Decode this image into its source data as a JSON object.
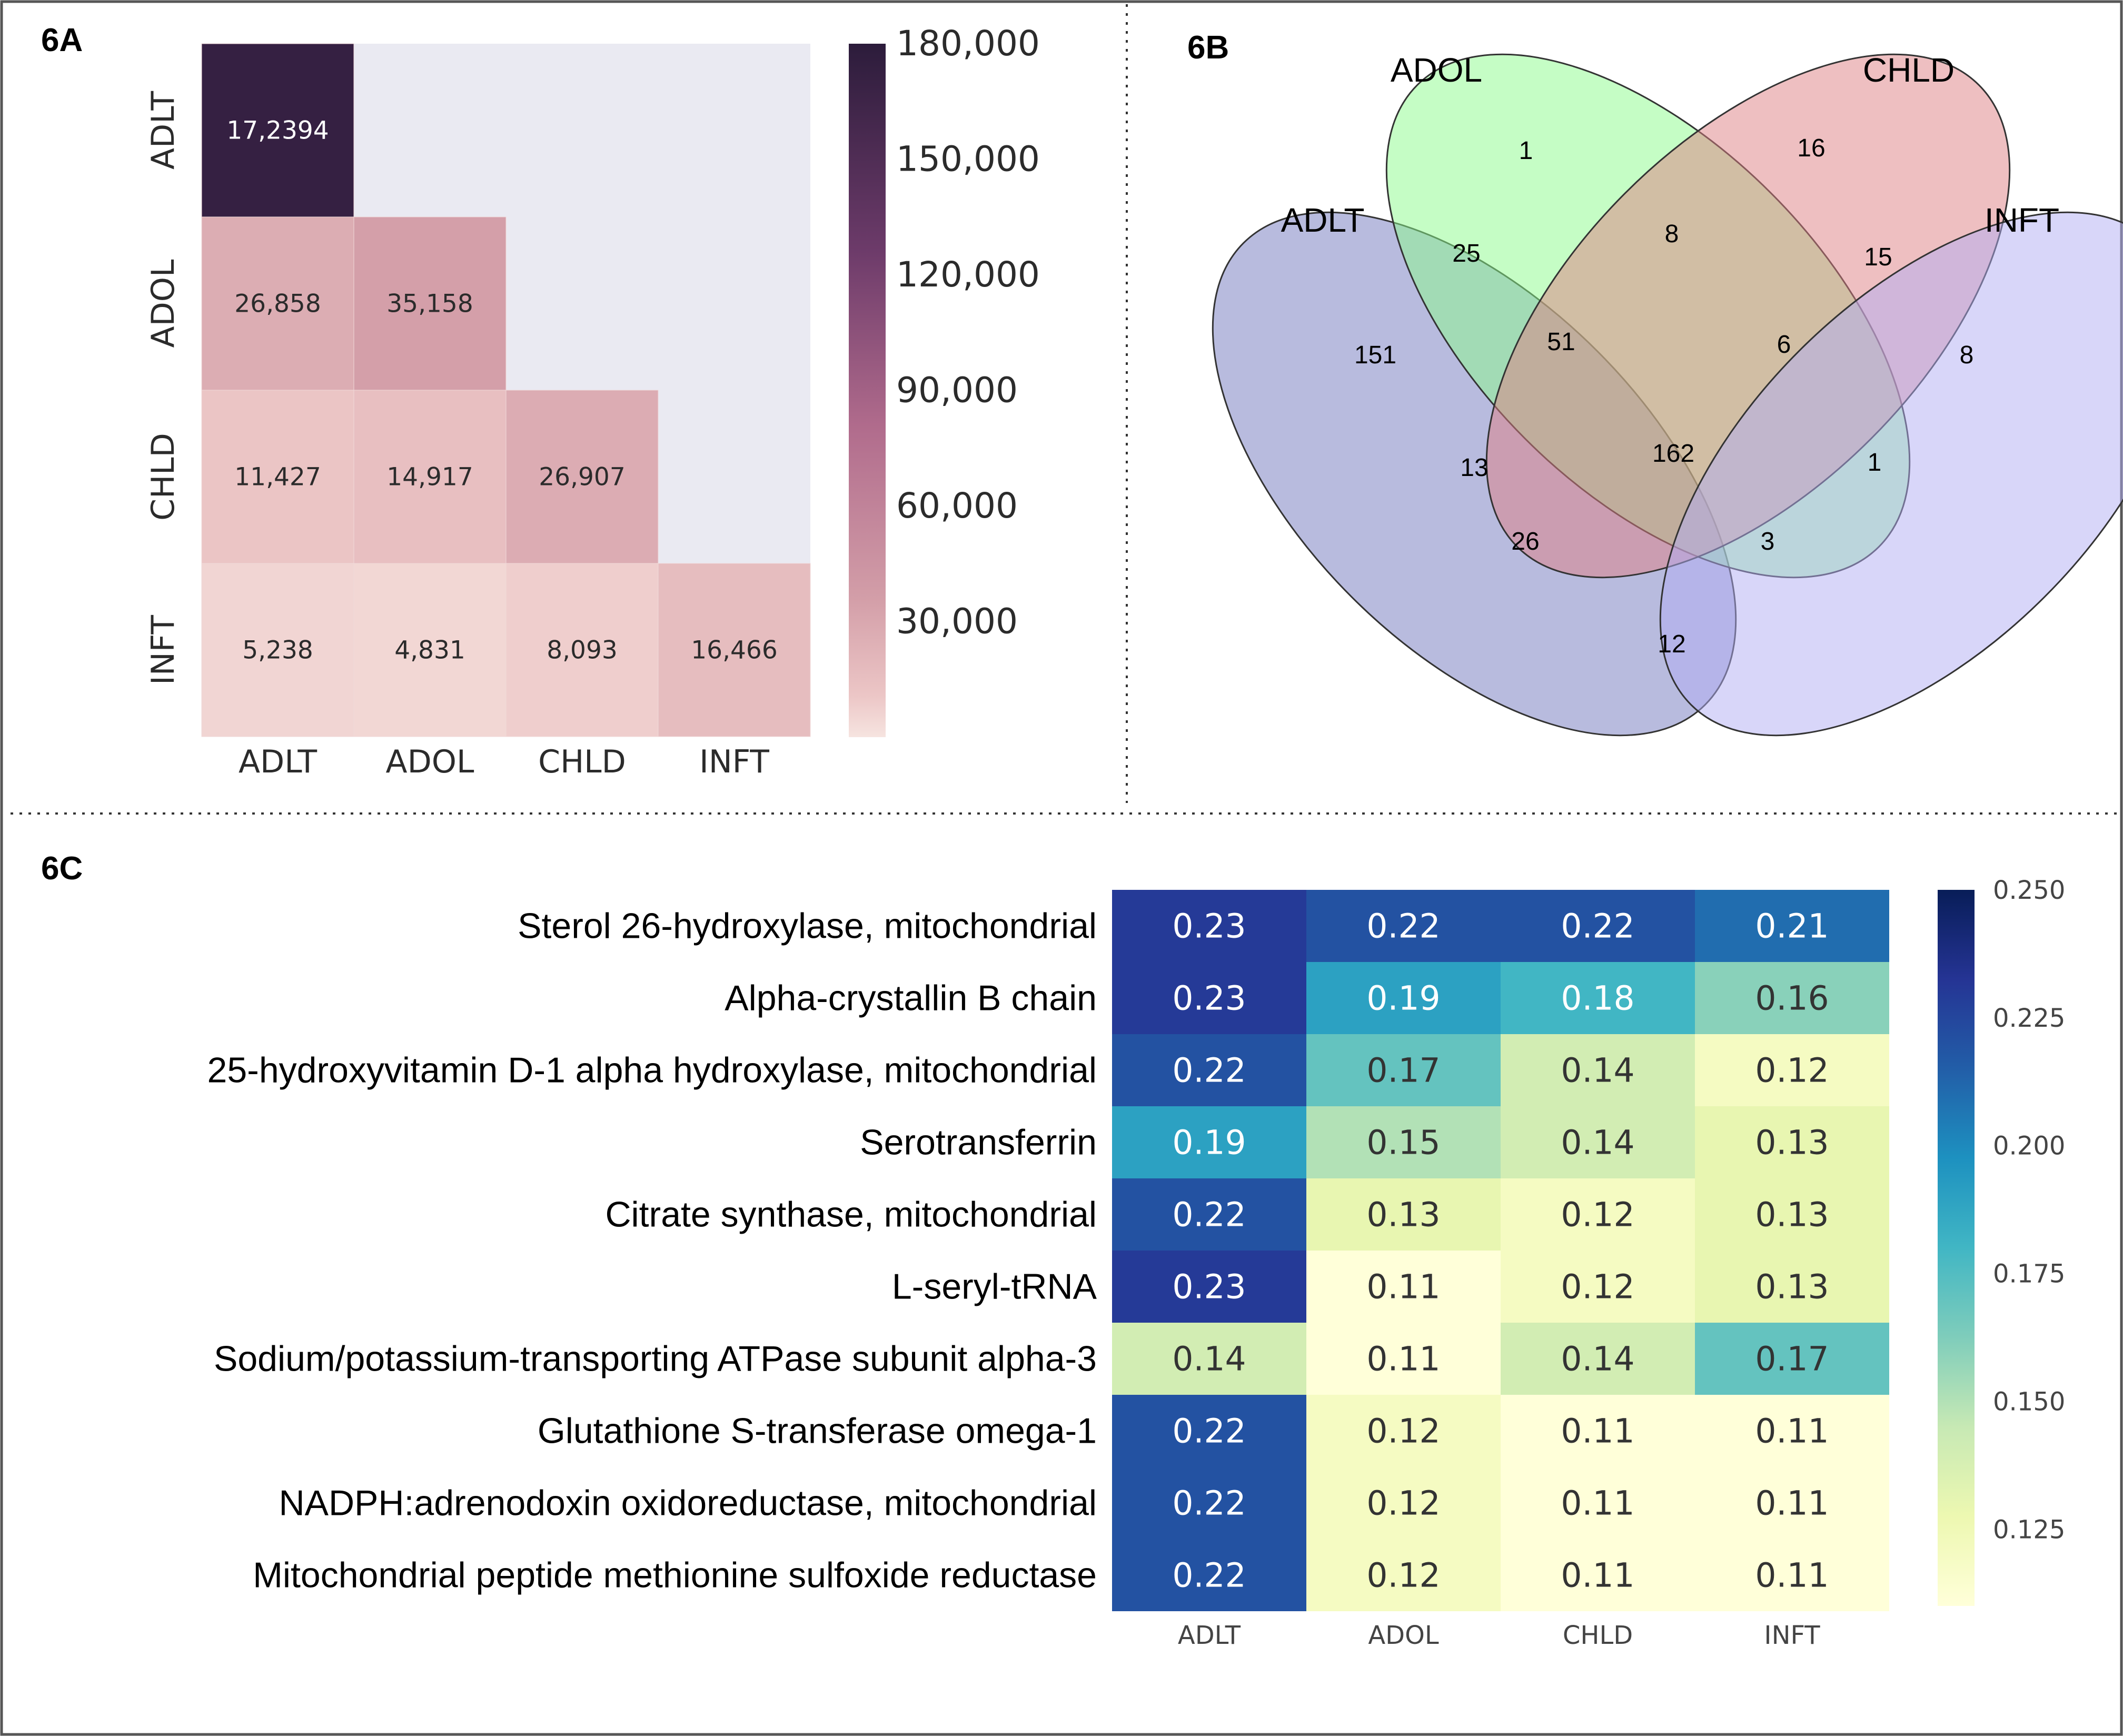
{
  "panels": {
    "a": "6A",
    "b": "6B",
    "c": "6C"
  },
  "chart_data": [
    {
      "id": "6A",
      "type": "heatmap",
      "title": "6A",
      "rows": [
        "ADLT",
        "ADOL",
        "CHLD",
        "INFT"
      ],
      "columns": [
        "ADLT",
        "ADOL",
        "CHLD",
        "INFT"
      ],
      "cells": [
        {
          "row": 0,
          "col": 0,
          "value": 172394,
          "label": "17,2394"
        },
        {
          "row": 1,
          "col": 0,
          "value": 26858,
          "label": "26,858"
        },
        {
          "row": 1,
          "col": 1,
          "value": 35158,
          "label": "35,158"
        },
        {
          "row": 2,
          "col": 0,
          "value": 11427,
          "label": "11,427"
        },
        {
          "row": 2,
          "col": 1,
          "value": 14917,
          "label": "14,917"
        },
        {
          "row": 2,
          "col": 2,
          "value": 26907,
          "label": "26,907"
        },
        {
          "row": 3,
          "col": 0,
          "value": 5238,
          "label": "5,238"
        },
        {
          "row": 3,
          "col": 1,
          "value": 4831,
          "label": "4,831"
        },
        {
          "row": 3,
          "col": 2,
          "value": 8093,
          "label": "8,093"
        },
        {
          "row": 3,
          "col": 3,
          "value": 16466,
          "label": "16,466"
        }
      ],
      "colorbar": {
        "min": 0,
        "max": 180000,
        "ticks": [
          30000,
          60000,
          90000,
          120000,
          150000,
          180000
        ],
        "tick_labels": [
          "30,000",
          "60,000",
          "90,000",
          "120,000",
          "150,000",
          "180,000"
        ]
      },
      "colors": {
        "background": "#eaeaf2",
        "low": "#f2d5d3",
        "mid": "#d29aa4",
        "high": "#2e1e3e"
      }
    },
    {
      "id": "6B",
      "type": "venn",
      "title": "6B",
      "sets": [
        {
          "name": "ADLT",
          "color": "#7278be"
        },
        {
          "name": "ADOL",
          "color": "#8cfb8c"
        },
        {
          "name": "CHLD",
          "color": "#de7f84"
        },
        {
          "name": "INFT",
          "color": "#b2aef4"
        }
      ],
      "regions": [
        {
          "sets": [
            "ADOL"
          ],
          "value": 1
        },
        {
          "sets": [
            "CHLD"
          ],
          "value": 16
        },
        {
          "sets": [
            "ADLT",
            "ADOL"
          ],
          "value": 25
        },
        {
          "sets": [
            "ADOL",
            "CHLD"
          ],
          "value": 8
        },
        {
          "sets": [
            "CHLD",
            "INFT"
          ],
          "value": 15
        },
        {
          "sets": [
            "ADLT"
          ],
          "value": 151
        },
        {
          "sets": [
            "ADLT",
            "ADOL",
            "CHLD"
          ],
          "value": 51
        },
        {
          "sets": [
            "ADOL",
            "CHLD",
            "INFT"
          ],
          "value": 6
        },
        {
          "sets": [
            "INFT"
          ],
          "value": 8
        },
        {
          "sets": [
            "ADLT",
            "CHLD"
          ],
          "value": 13
        },
        {
          "sets": [
            "ADLT",
            "ADOL",
            "CHLD",
            "INFT"
          ],
          "value": 162
        },
        {
          "sets": [
            "ADOL",
            "INFT"
          ],
          "value": 1
        },
        {
          "sets": [
            "ADLT",
            "CHLD",
            "INFT"
          ],
          "value": 26
        },
        {
          "sets": [
            "ADLT",
            "ADOL",
            "INFT"
          ],
          "value": 3
        },
        {
          "sets": [
            "ADLT",
            "INFT"
          ],
          "value": 12
        }
      ]
    },
    {
      "id": "6C",
      "type": "heatmap",
      "title": "6C",
      "rows": [
        "Sterol 26-hydroxylase, mitochondrial",
        "Alpha-crystallin B chain",
        "25-hydroxyvitamin D-1 alpha hydroxylase, mitochondrial",
        "Serotransferrin",
        "Citrate synthase, mitochondrial",
        "L-seryl-tRNA",
        "Sodium/potassium-transporting ATPase subunit alpha-3",
        "Glutathione S-transferase omega-1",
        "NADPH:adrenodoxin oxidoreductase, mitochondrial",
        "Mitochondrial peptide methionine sulfoxide reductase"
      ],
      "columns": [
        "ADLT",
        "ADOL",
        "CHLD",
        "INFT"
      ],
      "values": [
        [
          0.23,
          0.22,
          0.22,
          0.21
        ],
        [
          0.23,
          0.19,
          0.18,
          0.16
        ],
        [
          0.22,
          0.17,
          0.14,
          0.12
        ],
        [
          0.19,
          0.15,
          0.14,
          0.13
        ],
        [
          0.22,
          0.13,
          0.12,
          0.13
        ],
        [
          0.23,
          0.11,
          0.12,
          0.13
        ],
        [
          0.14,
          0.11,
          0.14,
          0.17
        ],
        [
          0.22,
          0.12,
          0.11,
          0.11
        ],
        [
          0.22,
          0.12,
          0.11,
          0.11
        ],
        [
          0.22,
          0.12,
          0.11,
          0.11
        ]
      ],
      "colorbar": {
        "min": 0.11,
        "max": 0.25,
        "ticks": [
          0.125,
          0.15,
          0.175,
          0.2,
          0.225,
          0.25
        ],
        "tick_labels": [
          "0.125",
          "0.150",
          "0.175",
          "0.200",
          "0.225",
          "0.250"
        ]
      },
      "colormap": "YlGnBu"
    }
  ]
}
